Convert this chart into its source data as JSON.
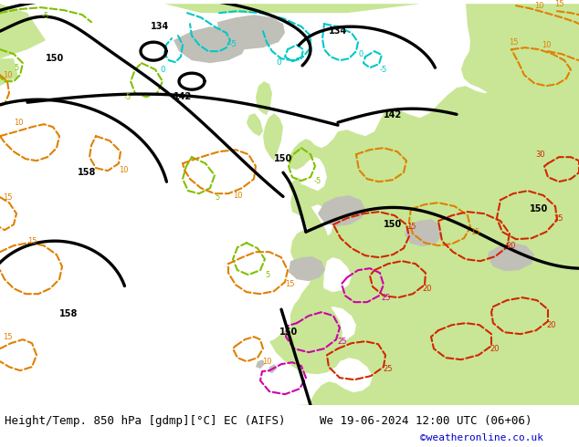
{
  "title_left": "Height/Temp. 850 hPa [gdmp][°C] EC (AIFS)",
  "title_right": "We 19-06-2024 12:00 UTC (06+06)",
  "credit": "©weatheronline.co.uk",
  "fig_width": 6.34,
  "fig_height": 4.9,
  "dpi": 100,
  "sea_color": "#e8e8e8",
  "land_green": "#c8e696",
  "land_gray": "#c0c0b8",
  "bottom_bg": "#d8d8d8",
  "text_color": "#000000",
  "credit_color": "#0000cc",
  "black_lw": 2.4,
  "temp_lw": 1.5,
  "font_title": 9,
  "font_credit": 8,
  "font_label": 7,
  "cyan_color": "#00c8c8",
  "lime_color": "#80c000",
  "orange_color": "#e08000",
  "red_color": "#d02800",
  "pink_color": "#cc00aa"
}
